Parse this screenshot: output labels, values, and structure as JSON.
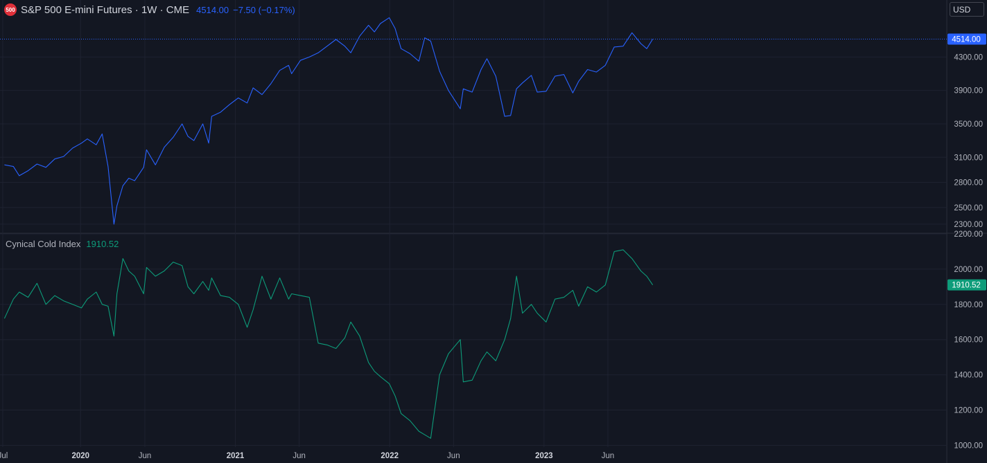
{
  "header": {
    "symbol_icon_text": "500",
    "title": "S&P 500 E-mini Futures · 1W · CME",
    "last_price": "4514.00",
    "change": "−7.50 (−0.17%)",
    "currency": "USD"
  },
  "indicator": {
    "name": "Cynical Cold Index",
    "value": "1910.52"
  },
  "colors": {
    "background": "#131722",
    "price_line": "#2962ff",
    "indicator_line": "#0d9c7a",
    "grid": "#1e2230"
  },
  "chart_data": [
    {
      "type": "line",
      "title": "S&P 500 E-mini Futures · 1W · CME",
      "last_value_label": "4514.00",
      "y_ticks": [
        "4300.00",
        "3900.00",
        "3500.00",
        "3100.00",
        "2800.00",
        "2500.00",
        "2300.00"
      ],
      "ylim": [
        2200,
        4750
      ],
      "grid": true,
      "x": [
        "2019-07-05",
        "2019-07-26",
        "2019-08-09",
        "2019-08-30",
        "2019-09-20",
        "2019-10-11",
        "2019-11-01",
        "2019-11-22",
        "2019-12-13",
        "2020-01-03",
        "2020-01-17",
        "2020-02-07",
        "2020-02-21",
        "2020-03-06",
        "2020-03-20",
        "2020-03-27",
        "2020-04-10",
        "2020-04-24",
        "2020-05-08",
        "2020-05-29",
        "2020-06-05",
        "2020-06-26",
        "2020-07-17",
        "2020-08-07",
        "2020-08-28",
        "2020-09-11",
        "2020-09-25",
        "2020-10-16",
        "2020-10-30",
        "2020-11-06",
        "2020-11-27",
        "2020-12-18",
        "2021-01-08",
        "2021-01-29",
        "2021-02-12",
        "2021-03-05",
        "2021-03-26",
        "2021-04-16",
        "2021-05-07",
        "2021-05-14",
        "2021-06-04",
        "2021-06-25",
        "2021-07-16",
        "2021-08-06",
        "2021-08-27",
        "2021-09-17",
        "2021-10-01",
        "2021-10-22",
        "2021-11-12",
        "2021-11-26",
        "2021-12-10",
        "2021-12-31",
        "2022-01-14",
        "2022-01-28",
        "2022-02-18",
        "2022-03-11",
        "2022-03-25",
        "2022-04-08",
        "2022-04-29",
        "2022-05-20",
        "2022-06-17",
        "2022-06-24",
        "2022-07-15",
        "2022-08-05",
        "2022-08-19",
        "2022-09-09",
        "2022-09-30",
        "2022-10-14",
        "2022-10-28",
        "2022-11-11",
        "2022-12-02",
        "2022-12-16",
        "2023-01-06",
        "2023-01-27",
        "2023-02-17",
        "2023-03-10",
        "2023-03-24",
        "2023-04-14",
        "2023-05-05",
        "2023-05-26",
        "2023-06-16",
        "2023-07-07",
        "2023-07-28",
        "2023-08-18",
        "2023-09-01",
        "2023-09-15"
      ],
      "series": [
        {
          "values": [
            3010,
            2990,
            2880,
            2940,
            3020,
            2980,
            3080,
            3110,
            3210,
            3270,
            3320,
            3250,
            3380,
            2990,
            2300,
            2520,
            2760,
            2850,
            2820,
            2980,
            3190,
            3010,
            3220,
            3340,
            3500,
            3350,
            3300,
            3500,
            3270,
            3590,
            3640,
            3730,
            3810,
            3750,
            3930,
            3850,
            3980,
            4140,
            4200,
            4100,
            4260,
            4300,
            4350,
            4430,
            4510,
            4430,
            4350,
            4550,
            4680,
            4600,
            4700,
            4770,
            4640,
            4400,
            4340,
            4250,
            4530,
            4490,
            4130,
            3900,
            3680,
            3920,
            3880,
            4150,
            4280,
            4070,
            3590,
            3600,
            3920,
            3990,
            4080,
            3880,
            3890,
            4070,
            4090,
            3870,
            4010,
            4150,
            4120,
            4200,
            4420,
            4430,
            4590,
            4460,
            4400,
            4514
          ]
        }
      ]
    },
    {
      "type": "line",
      "title": "Cynical Cold Index",
      "last_value_label": "1910.52",
      "y_ticks": [
        "2200.00",
        "2000.00",
        "1800.00",
        "1600.00",
        "1400.00",
        "1200.00",
        "1000.00"
      ],
      "ylim": [
        990,
        2200
      ],
      "grid": true,
      "x": [
        "2019-07-05",
        "2019-07-26",
        "2019-08-09",
        "2019-08-30",
        "2019-09-20",
        "2019-10-11",
        "2019-11-01",
        "2019-11-22",
        "2019-12-13",
        "2020-01-03",
        "2020-01-17",
        "2020-02-07",
        "2020-02-21",
        "2020-03-06",
        "2020-03-20",
        "2020-03-27",
        "2020-04-10",
        "2020-04-24",
        "2020-05-08",
        "2020-05-29",
        "2020-06-05",
        "2020-06-26",
        "2020-07-17",
        "2020-08-07",
        "2020-08-28",
        "2020-09-11",
        "2020-09-25",
        "2020-10-16",
        "2020-10-30",
        "2020-11-06",
        "2020-11-27",
        "2020-12-18",
        "2021-01-08",
        "2021-01-29",
        "2021-02-12",
        "2021-03-05",
        "2021-03-26",
        "2021-04-16",
        "2021-05-07",
        "2021-05-14",
        "2021-06-04",
        "2021-06-25",
        "2021-07-16",
        "2021-08-06",
        "2021-08-27",
        "2021-09-17",
        "2021-10-01",
        "2021-10-22",
        "2021-11-12",
        "2021-11-26",
        "2021-12-10",
        "2021-12-31",
        "2022-01-14",
        "2022-01-28",
        "2022-02-18",
        "2022-03-11",
        "2022-03-25",
        "2022-04-08",
        "2022-04-29",
        "2022-05-20",
        "2022-06-17",
        "2022-06-24",
        "2022-07-15",
        "2022-08-05",
        "2022-08-19",
        "2022-09-09",
        "2022-09-30",
        "2022-10-14",
        "2022-10-28",
        "2022-11-11",
        "2022-12-02",
        "2022-12-16",
        "2023-01-06",
        "2023-01-27",
        "2023-02-17",
        "2023-03-10",
        "2023-03-24",
        "2023-04-14",
        "2023-05-05",
        "2023-05-26",
        "2023-06-16",
        "2023-07-07",
        "2023-07-28",
        "2023-08-18",
        "2023-09-01",
        "2023-09-15"
      ],
      "series": [
        {
          "values": [
            1720,
            1830,
            1870,
            1840,
            1920,
            1800,
            1850,
            1820,
            1800,
            1780,
            1830,
            1870,
            1800,
            1790,
            1620,
            1860,
            2060,
            1990,
            1960,
            1860,
            2010,
            1960,
            1990,
            2040,
            2020,
            1900,
            1860,
            1930,
            1880,
            1950,
            1850,
            1840,
            1800,
            1670,
            1770,
            1960,
            1830,
            1950,
            1830,
            1860,
            1850,
            1840,
            1580,
            1570,
            1550,
            1610,
            1700,
            1620,
            1470,
            1420,
            1390,
            1350,
            1280,
            1180,
            1140,
            1080,
            1060,
            1040,
            1400,
            1520,
            1600,
            1360,
            1370,
            1480,
            1530,
            1480,
            1600,
            1720,
            1960,
            1750,
            1800,
            1750,
            1700,
            1830,
            1840,
            1880,
            1790,
            1900,
            1870,
            1910,
            2100,
            2110,
            2060,
            1990,
            1960,
            1910.52
          ]
        }
      ]
    }
  ],
  "x_axis": {
    "ticks": [
      {
        "label": "Jul",
        "date": "2019-07-01",
        "year": false
      },
      {
        "label": "2020",
        "date": "2020-01-01",
        "year": true
      },
      {
        "label": "Jun",
        "date": "2020-06-01",
        "year": false
      },
      {
        "label": "2021",
        "date": "2021-01-01",
        "year": true
      },
      {
        "label": "Jun",
        "date": "2021-06-01",
        "year": false
      },
      {
        "label": "2022",
        "date": "2022-01-01",
        "year": true
      },
      {
        "label": "Jun",
        "date": "2022-06-01",
        "year": false
      },
      {
        "label": "2023",
        "date": "2023-01-01",
        "year": true
      },
      {
        "label": "Jun",
        "date": "2023-06-01",
        "year": false
      }
    ]
  }
}
